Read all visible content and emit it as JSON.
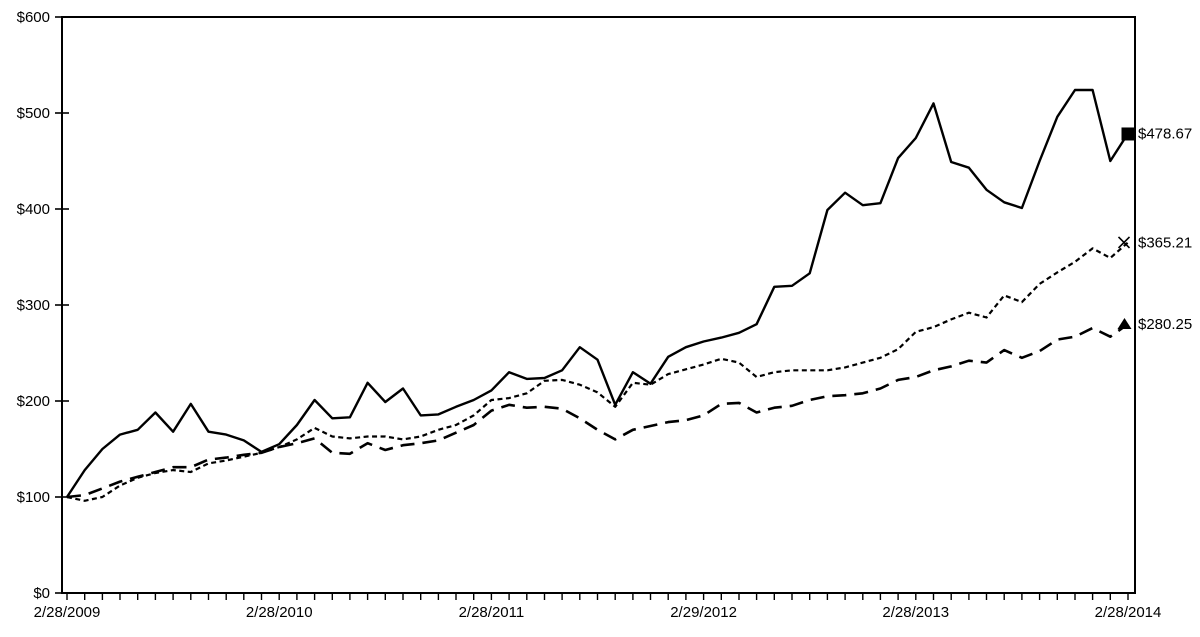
{
  "chart_data": {
    "type": "line",
    "title": "",
    "background_color": "#ffffff",
    "line_color": "#000000",
    "grid": "off",
    "plot_border": "box",
    "legend": "none",
    "y_axis": {
      "min": 0,
      "max": 600,
      "step": 100,
      "tick_labels": [
        "$0",
        "$100",
        "$200",
        "$300",
        "$400",
        "$500",
        "$600"
      ]
    },
    "x_axis": {
      "unit": "month",
      "points": 61,
      "minor_tick_every": 1,
      "year_tick_positions": [
        0,
        12,
        24,
        36,
        48,
        60
      ],
      "tick_labels": [
        "2/28/2009",
        "2/28/2010",
        "2/28/2011",
        "2/29/2012",
        "2/28/2013",
        "2/28/2014"
      ]
    },
    "series": [
      {
        "id": "series-1",
        "line_style": "solid",
        "end_marker": "filled-square",
        "end_label": "$478.67",
        "final_value": 478.67,
        "values": [
          100,
          128,
          150,
          165,
          170,
          188,
          168,
          197,
          168,
          165,
          159,
          147,
          155,
          175,
          201,
          182,
          183,
          219,
          199,
          213,
          185,
          186,
          194,
          201,
          211,
          230,
          223,
          224,
          232,
          256,
          243,
          196,
          230,
          218,
          246,
          256,
          262,
          266,
          271,
          280,
          319,
          320,
          333,
          399,
          417,
          404,
          406,
          453,
          474,
          510,
          449,
          443,
          420,
          407,
          401,
          450,
          496,
          524,
          524,
          450,
          478.67
        ]
      },
      {
        "id": "series-2",
        "line_style": "short-dash",
        "end_marker": "x-cross",
        "end_label": "$365.21",
        "final_value": 365.21,
        "values": [
          100,
          96,
          100,
          112,
          120,
          125,
          128,
          126,
          135,
          138,
          142,
          146,
          152,
          160,
          172,
          163,
          161,
          163,
          163,
          160,
          163,
          170,
          175,
          185,
          201,
          203,
          208,
          221,
          222,
          217,
          209,
          194,
          219,
          217,
          228,
          233,
          238,
          244,
          240,
          225,
          230,
          232,
          232,
          232,
          235,
          240,
          245,
          254,
          272,
          277,
          285,
          292,
          287,
          310,
          303,
          322,
          334,
          345,
          359,
          349,
          365.21
        ]
      },
      {
        "id": "series-3",
        "line_style": "long-dash",
        "end_marker": "filled-triangle",
        "end_label": "$280.25",
        "final_value": 280.25,
        "values": [
          100,
          102,
          109,
          116,
          121,
          126,
          131,
          131,
          139,
          141,
          144,
          146,
          152,
          156,
          161,
          146,
          145,
          156,
          149,
          154,
          156,
          159,
          167,
          175,
          190,
          196,
          193,
          194,
          192,
          182,
          170,
          160,
          170,
          174,
          178,
          180,
          185,
          197,
          198,
          188,
          193,
          195,
          201,
          205,
          206,
          208,
          213,
          222,
          225,
          232,
          236,
          242,
          240,
          253,
          245,
          252,
          264,
          267,
          276,
          267,
          280.25
        ]
      }
    ]
  }
}
